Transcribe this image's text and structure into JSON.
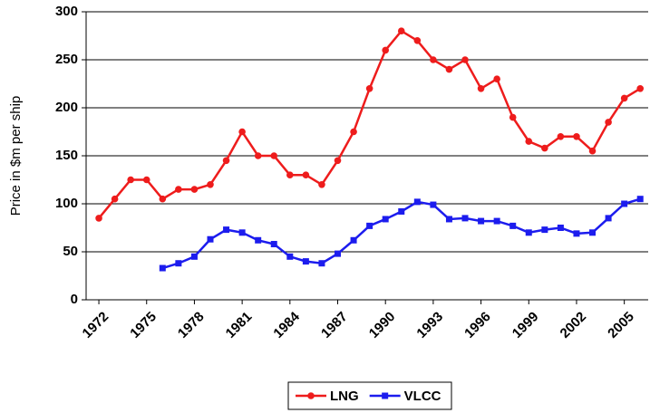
{
  "chart_data": {
    "type": "line",
    "y_label": "Price in $m per ship",
    "x": [
      1972,
      1973,
      1974,
      1975,
      1976,
      1977,
      1978,
      1979,
      1980,
      1981,
      1982,
      1983,
      1984,
      1985,
      1986,
      1987,
      1988,
      1989,
      1990,
      1991,
      1992,
      1993,
      1994,
      1995,
      1996,
      1997,
      1998,
      1999,
      2000,
      2001,
      2002,
      2003,
      2004,
      2005,
      2006
    ],
    "series": [
      {
        "name": "LNG",
        "color": "#ee1c1c",
        "marker": "circle",
        "values": [
          85,
          105,
          125,
          125,
          105,
          115,
          115,
          120,
          145,
          175,
          150,
          150,
          130,
          130,
          120,
          145,
          175,
          220,
          260,
          280,
          270,
          250,
          240,
          250,
          220,
          230,
          190,
          165,
          158,
          170,
          170,
          155,
          185,
          210,
          220
        ]
      },
      {
        "name": "VLCC",
        "color": "#1c1cee",
        "marker": "square",
        "values": [
          null,
          null,
          null,
          null,
          33,
          38,
          45,
          63,
          73,
          70,
          62,
          58,
          45,
          40,
          38,
          48,
          62,
          77,
          84,
          92,
          102,
          99,
          84,
          85,
          82,
          82,
          77,
          70,
          73,
          75,
          69,
          70,
          85,
          100,
          105
        ]
      }
    ],
    "xlim": [
      1971.2,
      2006.5
    ],
    "xticks": [
      1972,
      1975,
      1978,
      1981,
      1984,
      1987,
      1990,
      1993,
      1996,
      1999,
      2002,
      2005
    ],
    "ylim": [
      0,
      300
    ],
    "yticks": [
      0,
      50,
      100,
      150,
      200,
      250,
      300
    ],
    "grid": true,
    "legend": "bottom"
  }
}
